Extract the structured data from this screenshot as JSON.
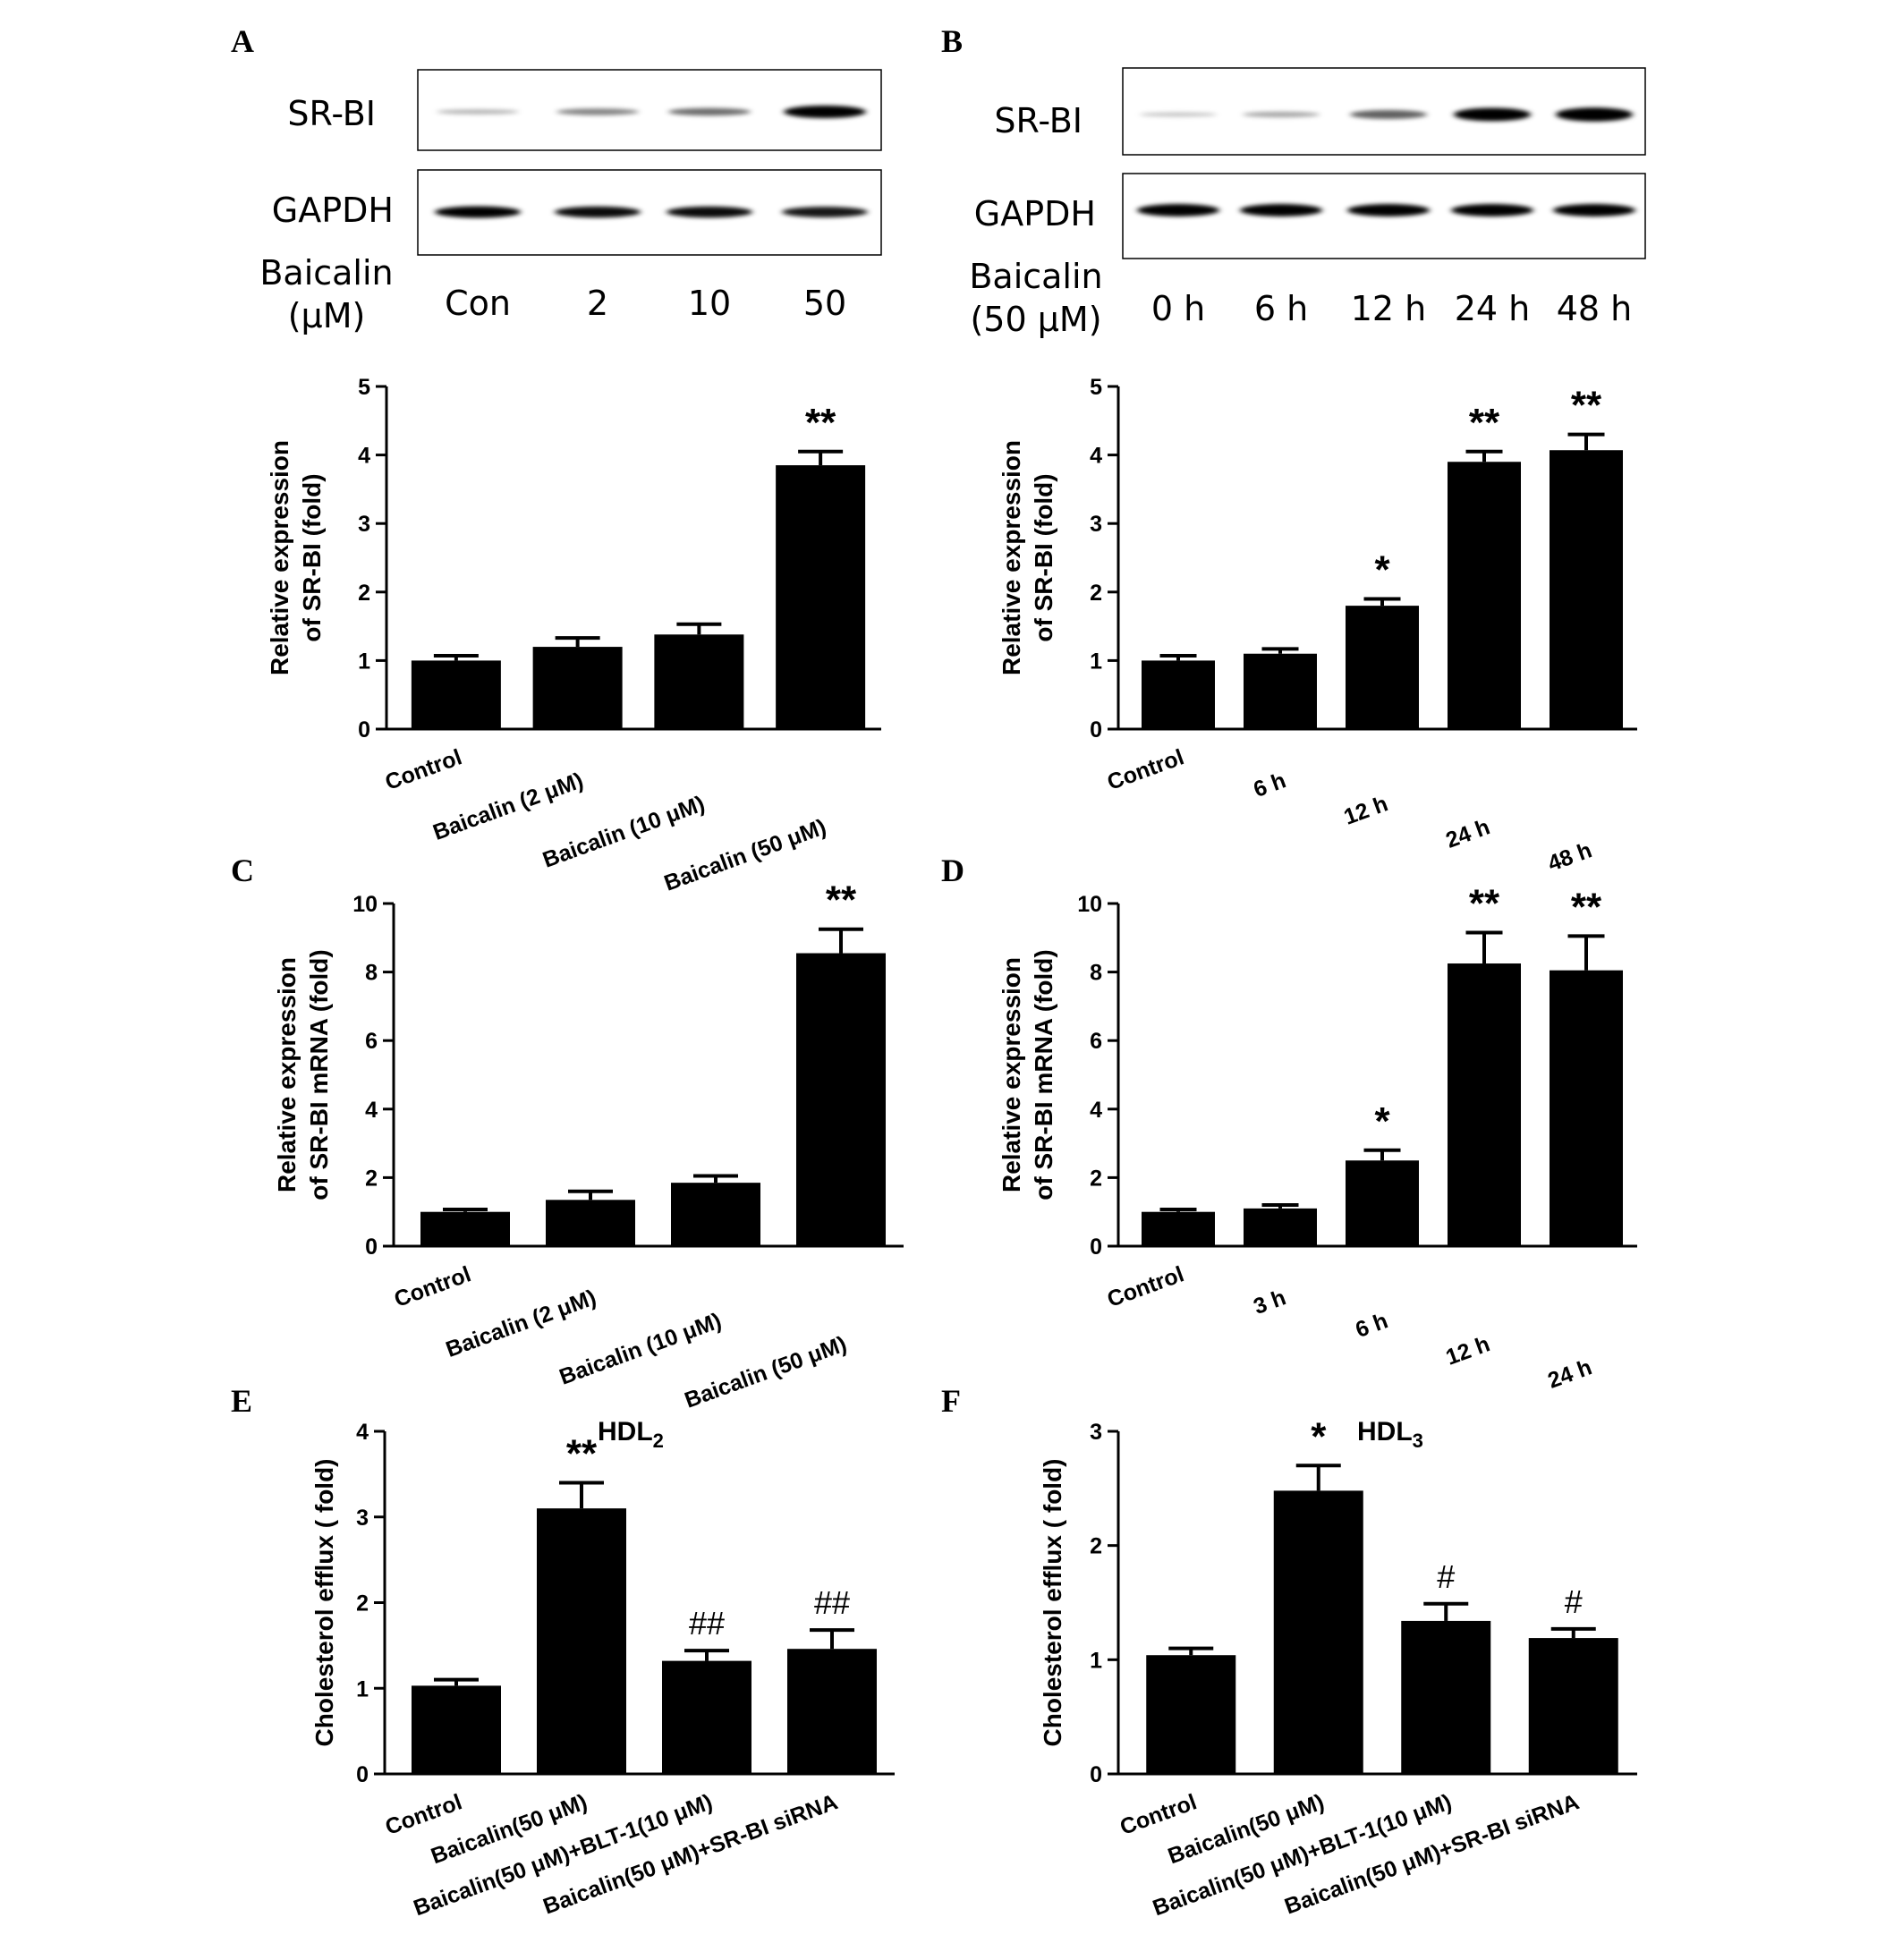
{
  "blots": [
    {
      "panel": "A",
      "rows": [
        "SR-BI",
        "GAPDH"
      ],
      "treatment_label": [
        "Baicalin",
        "(μM)"
      ],
      "lanes": [
        "Con",
        "2",
        "10",
        "50"
      ],
      "band_intensity": {
        "SR-BI": [
          0.15,
          0.35,
          0.45,
          1.0
        ],
        "GAPDH": [
          0.9,
          0.85,
          0.85,
          0.8
        ]
      }
    },
    {
      "panel": "B",
      "rows": [
        "SR-BI",
        "GAPDH"
      ],
      "treatment_label": [
        "Baicalin",
        "(50 μM)"
      ],
      "lanes": [
        "0 h",
        "6 h",
        "12 h",
        "24 h",
        "48 h"
      ],
      "band_intensity": {
        "SR-BI": [
          0.08,
          0.2,
          0.5,
          0.9,
          0.95
        ],
        "GAPDH": [
          0.9,
          0.9,
          0.9,
          0.9,
          0.9
        ]
      }
    }
  ],
  "chart_data": [
    {
      "panel": "A",
      "type": "bar",
      "categories": [
        "Control",
        "Baicalin (2 μM)",
        "Baicalin (10 μM)",
        "Baicalin (50 μM)"
      ],
      "values": [
        1.0,
        1.2,
        1.38,
        3.85
      ],
      "errors": [
        0.07,
        0.13,
        0.15,
        0.2
      ],
      "annotations": [
        "",
        "",
        "",
        "**"
      ],
      "ylabel": [
        "Relative expression",
        "of SR-BI (fold)"
      ],
      "ylim": [
        0,
        5
      ],
      "yticks": [
        0,
        1,
        2,
        3,
        4,
        5
      ]
    },
    {
      "panel": "B",
      "type": "bar",
      "categories": [
        "Control",
        "6 h",
        "12 h",
        "24 h",
        "48 h"
      ],
      "values": [
        1.0,
        1.1,
        1.8,
        3.9,
        4.07
      ],
      "errors": [
        0.07,
        0.07,
        0.1,
        0.15,
        0.23
      ],
      "annotations": [
        "",
        "",
        "*",
        "**",
        "**"
      ],
      "ylabel": [
        "Relative expression",
        "of SR-BI (fold)"
      ],
      "ylim": [
        0,
        5
      ],
      "yticks": [
        0,
        1,
        2,
        3,
        4,
        5
      ]
    },
    {
      "panel": "C",
      "type": "bar",
      "categories": [
        "Control",
        "Baicalin (2 μM)",
        "Baicalin (10 μM)",
        "Baicalin (50 μM)"
      ],
      "values": [
        1.0,
        1.35,
        1.85,
        8.55
      ],
      "errors": [
        0.07,
        0.25,
        0.2,
        0.7
      ],
      "annotations": [
        "",
        "",
        "",
        "**"
      ],
      "ylabel": [
        "Relative expression",
        "of SR-BI mRNA (fold)"
      ],
      "ylim": [
        0,
        10
      ],
      "yticks": [
        0,
        2,
        4,
        6,
        8,
        10
      ]
    },
    {
      "panel": "D",
      "type": "bar",
      "categories": [
        "Control",
        "3 h",
        "6 h",
        "12 h",
        "24 h"
      ],
      "values": [
        1.0,
        1.1,
        2.5,
        8.25,
        8.05
      ],
      "errors": [
        0.07,
        0.1,
        0.3,
        0.9,
        1.0
      ],
      "annotations": [
        "",
        "",
        "*",
        "**",
        "**"
      ],
      "ylabel": [
        "Relative expression",
        "of SR-BI mRNA (fold)"
      ],
      "ylim": [
        0,
        10
      ],
      "yticks": [
        0,
        2,
        4,
        6,
        8,
        10
      ]
    },
    {
      "panel": "E",
      "type": "bar",
      "title": "HDL2",
      "categories": [
        "Control",
        "Baicalin(50 μM)",
        "Baicalin(50 μM)+BLT-1(10 μM)",
        "Baicalin(50 μM)+SR-BI siRNA"
      ],
      "values": [
        1.03,
        3.1,
        1.32,
        1.46
      ],
      "errors": [
        0.07,
        0.3,
        0.12,
        0.22
      ],
      "annotations": [
        "",
        "**",
        "##",
        "##"
      ],
      "ylabel": [
        "Cholesterol efflux ( fold)"
      ],
      "ylim": [
        0,
        4
      ],
      "yticks": [
        0,
        1,
        2,
        3,
        4
      ]
    },
    {
      "panel": "F",
      "type": "bar",
      "title": "HDL3",
      "categories": [
        "Control",
        "Baicalin(50 μM)",
        "Baicalin(50 μM)+BLT-1(10 μM)",
        "Baicalin(50 μM)+SR-BI siRNA"
      ],
      "values": [
        1.04,
        2.48,
        1.34,
        1.19
      ],
      "errors": [
        0.06,
        0.22,
        0.15,
        0.08
      ],
      "annotations": [
        "",
        "*",
        "#",
        "#"
      ],
      "ylabel": [
        "Cholesterol efflux ( fold)"
      ],
      "ylim": [
        0,
        3
      ],
      "yticks": [
        0,
        1,
        2,
        3
      ]
    }
  ],
  "colors": {
    "bar": "#000000",
    "axis": "#000000",
    "background": "#ffffff"
  }
}
